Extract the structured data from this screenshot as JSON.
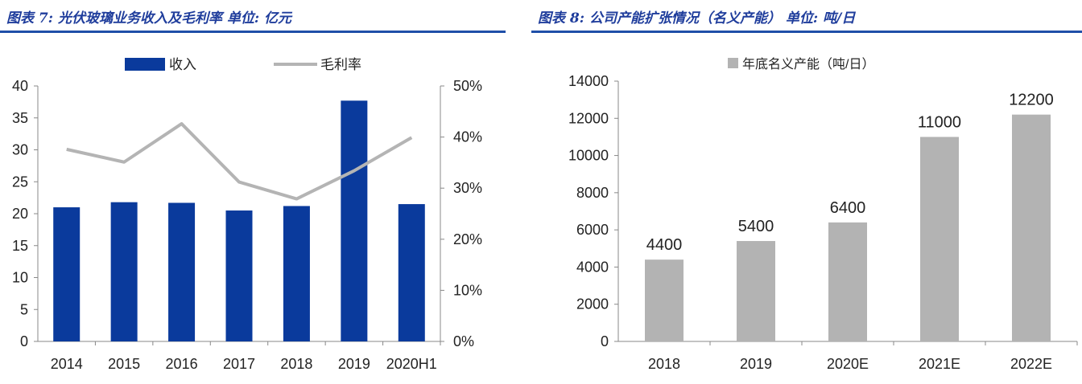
{
  "panels": [
    {
      "title": "图表 7: 光伏玻璃业务收入及毛利率 单位: 亿元"
    },
    {
      "title": "图表 8: 公司产能扩张情况（名义产能） 单位: 吨/日"
    }
  ],
  "chart_data": [
    {
      "type": "bar",
      "categories": [
        "2014",
        "2015",
        "2016",
        "2017",
        "2018",
        "2019",
        "2020H1"
      ],
      "series": [
        {
          "name": "收入",
          "type": "bar",
          "values": [
            21.0,
            21.8,
            21.7,
            20.5,
            21.2,
            37.7,
            21.5
          ],
          "color": "#0a3a9c"
        },
        {
          "name": "毛利率",
          "type": "line",
          "axis": "right",
          "values": [
            37.6,
            35.1,
            42.6,
            31.2,
            27.9,
            33.4,
            39.9
          ],
          "color": "#b4b4b4"
        }
      ],
      "ylim": [
        0,
        40
      ],
      "yticks": [
        "0",
        "5",
        "10",
        "15",
        "20",
        "25",
        "30",
        "35",
        "40"
      ],
      "y2lim": [
        0,
        50
      ],
      "y2ticks": [
        "0%",
        "10%",
        "20%",
        "30%",
        "40%",
        "50%"
      ],
      "legend": "top",
      "grid": false
    },
    {
      "type": "bar",
      "categories": [
        "2018",
        "2019",
        "2020E",
        "2021E",
        "2022E"
      ],
      "series": [
        {
          "name": "年底名义产能（吨/日）",
          "values": [
            4400,
            5400,
            6400,
            11000,
            12200
          ],
          "color": "#b3b3b3"
        }
      ],
      "data_labels": [
        "4400",
        "5400",
        "6400",
        "11000",
        "12200"
      ],
      "ylim": [
        0,
        14000
      ],
      "yticks": [
        "0",
        "2000",
        "4000",
        "6000",
        "8000",
        "10000",
        "12000",
        "14000"
      ],
      "legend": "top",
      "grid": false
    }
  ]
}
